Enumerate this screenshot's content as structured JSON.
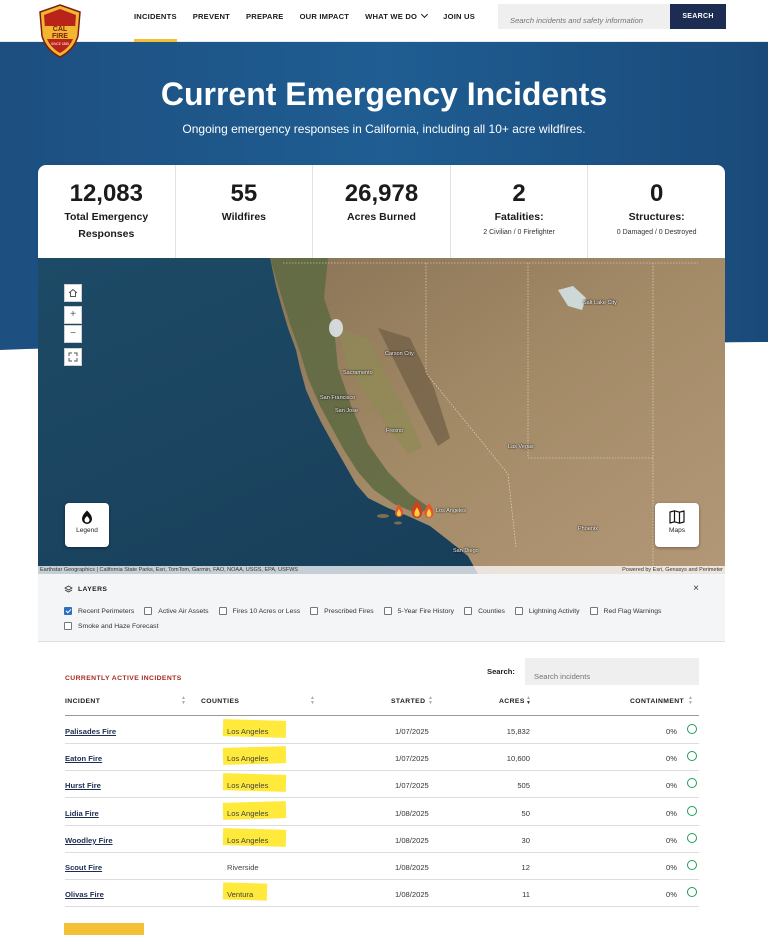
{
  "nav": {
    "logo_text": "CAL FIRE",
    "logo_since": "SINCE 1885",
    "links": [
      {
        "label": "INCIDENTS"
      },
      {
        "label": "PREVENT"
      },
      {
        "label": "PREPARE"
      },
      {
        "label": "OUR IMPACT"
      },
      {
        "label": "WHAT WE DO"
      },
      {
        "label": "JOIN US"
      }
    ],
    "search_placeholder": "Search incidents and safety information",
    "search_button": "SEARCH"
  },
  "hero": {
    "title": "Current Emergency Incidents",
    "subtitle": "Ongoing emergency responses in California, including all 10+ acre wildfires."
  },
  "stats": [
    {
      "value": "12,083",
      "label": "Total Emergency Responses",
      "detail": ""
    },
    {
      "value": "55",
      "label": "Wildfires",
      "detail": ""
    },
    {
      "value": "26,978",
      "label": "Acres Burned",
      "detail": ""
    },
    {
      "value": "2",
      "label": "Fatalities:",
      "detail": "2 Civilian / 0 Firefighter"
    },
    {
      "value": "0",
      "label": "Structures:",
      "detail": "0 Damaged / 0 Destroyed"
    }
  ],
  "map": {
    "controls": [
      "home",
      "zoom-in",
      "zoom-out",
      "fullscreen"
    ],
    "legend_label": "Legend",
    "maps_label": "Maps",
    "cities": [
      "Salt Lake City",
      "Carson City",
      "Sacramento",
      "San Francisco",
      "San Jose",
      "Fresno",
      "Las Vegas",
      "Los Angeles",
      "San Diego",
      "Phoenix"
    ],
    "attribution_left": "Earthstar Geographics | California State Parks, Esri, TomTom, Garmin, FAO, NOAA, USGS, EPA, USFWS",
    "attribution_right": "Powered by Esri, Genasys and Perimeter"
  },
  "layers": {
    "title": "LAYERS",
    "close": "×",
    "items": [
      {
        "label": "Recent Perimeters",
        "checked": true
      },
      {
        "label": "Active Air Assets",
        "checked": false
      },
      {
        "label": "Fires 10 Acres or Less",
        "checked": false
      },
      {
        "label": "Prescribed Fires",
        "checked": false
      },
      {
        "label": "5-Year Fire History",
        "checked": false
      },
      {
        "label": "Counties",
        "checked": false
      },
      {
        "label": "Lightning Activity",
        "checked": false
      },
      {
        "label": "Red Flag Warnings",
        "checked": false
      },
      {
        "label": "Smoke and Haze Forecast",
        "checked": false
      }
    ]
  },
  "incidents": {
    "title": "CURRENTLY ACTIVE INCIDENTS",
    "search_label": "Search:",
    "search_placeholder": "Search incidents",
    "columns": [
      "INCIDENT",
      "COUNTIES",
      "STARTED",
      "ACRES",
      "CONTAINMENT"
    ],
    "rows": [
      {
        "name": "Palisades Fire",
        "county": "Los Angeles",
        "started": "1/07/2025",
        "acres": "15,832",
        "containment": "0%",
        "highlighted": true
      },
      {
        "name": "Eaton Fire",
        "county": "Los Angeles",
        "started": "1/07/2025",
        "acres": "10,600",
        "containment": "0%",
        "highlighted": true
      },
      {
        "name": "Hurst Fire",
        "county": "Los Angeles",
        "started": "1/07/2025",
        "acres": "505",
        "containment": "0%",
        "highlighted": true
      },
      {
        "name": "Lidia Fire",
        "county": "Los Angeles",
        "started": "1/08/2025",
        "acres": "50",
        "containment": "0%",
        "highlighted": true
      },
      {
        "name": "Woodley Fire",
        "county": "Los Angeles",
        "started": "1/08/2025",
        "acres": "30",
        "containment": "0%",
        "highlighted": true
      },
      {
        "name": "Scout Fire",
        "county": "Riverside",
        "started": "1/08/2025",
        "acres": "12",
        "containment": "0%",
        "highlighted": false
      },
      {
        "name": "Olivas Fire",
        "county": "Ventura",
        "started": "1/08/2025",
        "acres": "11",
        "containment": "0%",
        "highlighted": true
      }
    ]
  },
  "colors": {
    "navy": "#1d2c52",
    "hero_blue": "#1f5b8e",
    "accent_yellow": "#f4c136",
    "highlight": "#ffe93b",
    "incident_title_red": "#a3281f",
    "containment_green": "#1f9d55"
  }
}
